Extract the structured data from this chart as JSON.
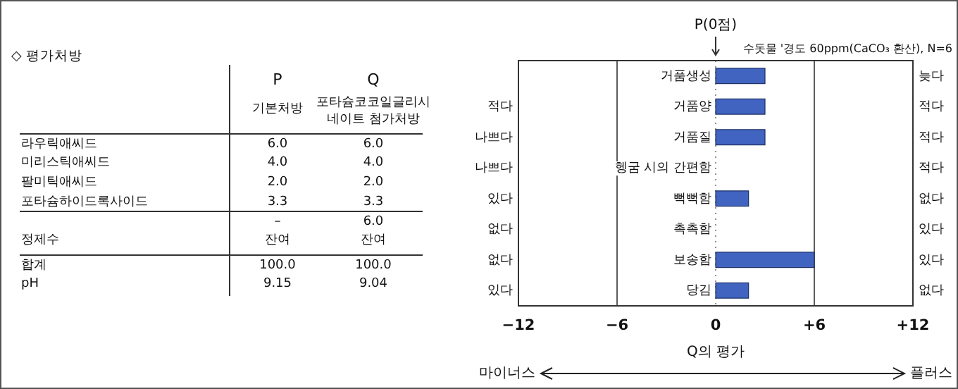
{
  "chart_data": [
    {
      "type": "other",
      "title": "◇ 평가처방",
      "categories": [
        "P",
        "Q"
      ],
      "annotations": [
        "기본처방",
        "포타슘코코일글리시네이트 첨가처방",
        "라우릭애씨드",
        "6.0",
        "6.0",
        "미리스틱애씨드",
        "4.0",
        "4.0",
        "팔미틱애씨드",
        "2.0",
        "2.0",
        "포타슘하이드록사이드",
        "3.3",
        "3.3",
        "–",
        "6.0",
        "정제수",
        "잔여",
        "잔여",
        "합계",
        "100.0",
        "100.0",
        "pH",
        "9.15",
        "9.04"
      ]
    },
    {
      "type": "bar",
      "orientation": "horizontal",
      "subtitle": "수돗물 '경도 60ppm(CaCO₃ 환산), N=6",
      "xlabel": "Q의 평가",
      "categories": [
        "거품생성",
        "거품양",
        "거품질",
        "헹굼 시의 간편함",
        "뻑뻑함",
        "촉촉함",
        "보송함",
        "당김"
      ],
      "values": [
        3,
        3,
        3,
        0,
        2,
        0,
        6,
        2
      ],
      "color": "#4064c0",
      "xlim": [
        -12,
        12
      ],
      "xticks": [
        {
          "value": -12,
          "label": "−12"
        },
        {
          "value": -6,
          "label": "−6"
        },
        {
          "value": 0,
          "label": "0"
        },
        {
          "value": 6,
          "label": "+6"
        },
        {
          "value": 12,
          "label": "+12"
        }
      ],
      "grid": "x",
      "ref_lines": [
        {
          "axis": "x",
          "value": 0,
          "label": "P(0점)",
          "line_style": "dotted"
        }
      ],
      "annotations": [
        "늦다",
        "적다",
        "적다",
        "나쁘다",
        "적다",
        "나쁘다",
        "적다",
        "있다",
        "없다",
        "없다",
        "있다",
        "없다",
        "있다",
        "있다",
        "없다",
        "마이너스",
        "플러스"
      ]
    }
  ]
}
